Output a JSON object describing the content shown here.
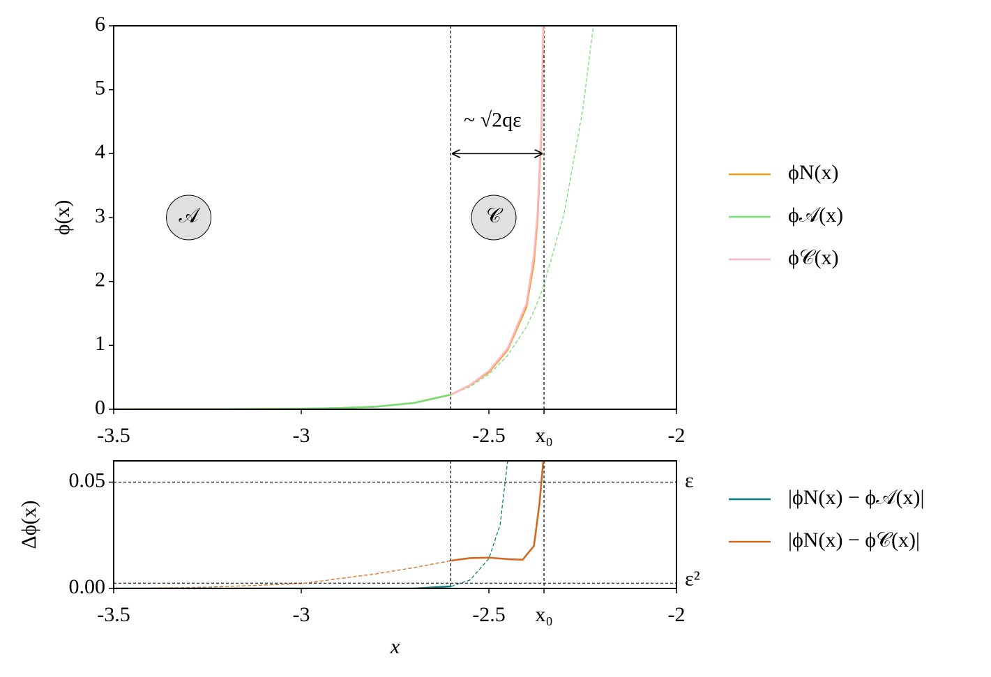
{
  "chart_data": [
    {
      "type": "line",
      "ylabel": "ϕ(x)",
      "x": [
        -3.5,
        -3.25,
        -3.0,
        -2.9,
        -2.8,
        -2.7,
        -2.6,
        -2.55,
        -2.5,
        -2.45,
        -2.4,
        -2.38,
        -2.37,
        -2.36,
        -2.355,
        -2.3,
        -2.25,
        -2.22
      ],
      "series": [
        {
          "name": "ϕN(x)",
          "color": "#f39c12",
          "linestyle": [
            "solid",
            "solid"
          ],
          "values": [
            0.0001,
            0.0009,
            0.0074,
            0.0175,
            0.041,
            0.098,
            0.23,
            0.38,
            0.58,
            0.93,
            1.6,
            2.3,
            3.0,
            4.3,
            6.0,
            null,
            null,
            null
          ]
        },
        {
          "name": "ϕ𝒜(x)",
          "color": "#77dd77",
          "linestyle": [
            "solid",
            "dashed"
          ],
          "values": [
            0.0001,
            0.0009,
            0.0074,
            0.0175,
            0.041,
            0.098,
            0.231,
            0.355,
            0.545,
            0.84,
            1.29,
            1.54,
            1.68,
            1.83,
            1.91,
            3.05,
            4.68,
            6.06
          ]
        },
        {
          "name": "ϕ𝒞(x)",
          "color": "#ffb6c1",
          "linestyle": [
            "solid",
            "solid"
          ],
          "values": [
            null,
            null,
            null,
            null,
            null,
            null,
            0.23,
            0.38,
            0.6,
            0.95,
            1.65,
            2.4,
            3.1,
            4.4,
            6.0,
            null,
            null,
            null
          ]
        }
      ],
      "xlim": [
        -3.5,
        -2
      ],
      "ylim": [
        0,
        6
      ],
      "xticks": [
        -3.5,
        -3,
        -2.5,
        {
          "value": -2.353,
          "label": "x₀"
        },
        -2
      ],
      "yticks": [
        0,
        1,
        2,
        3,
        4,
        5,
        6
      ],
      "vlines": [
        -2.602,
        -2.353
      ],
      "annotations": [
        {
          "text": "~ √2qε",
          "x": -2.49,
          "y": 4.5
        },
        {
          "text": "𝒜",
          "x": -3.3,
          "y": 3
        },
        {
          "text": "𝒞",
          "x": -2.487,
          "y": 3
        }
      ],
      "legend": "right"
    },
    {
      "type": "line",
      "xlabel": "x",
      "ylabel": "Δϕ(x)",
      "x": [
        -3.5,
        -3.25,
        -3.0,
        -2.8,
        -2.7,
        -2.6,
        -2.55,
        -2.5,
        -2.47,
        -2.45,
        -2.41,
        -2.38,
        -2.365,
        -2.355
      ],
      "series": [
        {
          "name": "|ϕN(x) − ϕ𝒜(x)|",
          "color": "#008080",
          "linestyle": [
            "solid",
            "dashed"
          ],
          "values": [
            0,
            0,
            0,
            0,
            0,
            0.001,
            0.004,
            0.014,
            0.03,
            0.06,
            null,
            null,
            null,
            null
          ]
        },
        {
          "name": "|ϕN(x) − ϕ𝒞(x)|",
          "color": "#d2691e",
          "linestyle": [
            "dashed",
            "solid"
          ],
          "values": [
            0,
            0.0006,
            0.0023,
            0.0069,
            0.0098,
            0.0131,
            0.0143,
            0.0145,
            0.0141,
            0.0138,
            0.0135,
            0.02,
            0.04,
            0.06
          ]
        }
      ],
      "xlim": [
        -3.5,
        -2
      ],
      "ylim": [
        0,
        0.06
      ],
      "xticks": [
        -3.5,
        -3,
        -2.5,
        {
          "value": -2.353,
          "label": "x₀"
        },
        -2
      ],
      "yticks": [
        {
          "value": 0,
          "label": "0.00"
        },
        {
          "value": 0.05,
          "label": "0.05"
        }
      ],
      "vlines": [
        -2.602,
        -2.353
      ],
      "hlines": [
        {
          "value": 0.05,
          "label": "ε"
        },
        {
          "value": 0.0025,
          "label": "ε²"
        }
      ],
      "legend": "right"
    }
  ]
}
